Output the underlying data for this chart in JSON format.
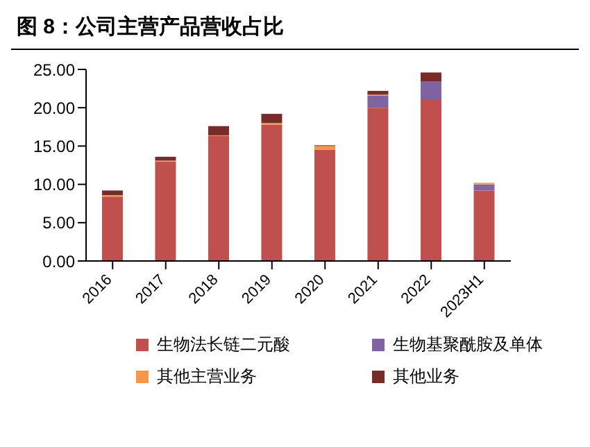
{
  "chart_data": {
    "type": "bar",
    "title": "图 8：公司主营产品营收占比",
    "stacked": true,
    "categories": [
      "2016",
      "2017",
      "2018",
      "2019",
      "2020",
      "2021",
      "2022",
      "2023H1"
    ],
    "series": [
      {
        "name": "生物法长链二元酸",
        "color": "#c0504d",
        "values": [
          8.4,
          13.0,
          16.3,
          17.8,
          14.5,
          20.0,
          21.1,
          9.2
        ]
      },
      {
        "name": "生物基聚酰胺及单体",
        "color": "#8064a2",
        "values": [
          0,
          0,
          0,
          0,
          0,
          1.6,
          2.3,
          0.8
        ]
      },
      {
        "name": "其他主营业务",
        "color": "#f79646",
        "values": [
          0.2,
          0.1,
          0.1,
          0.2,
          0.5,
          0.1,
          0,
          0.2
        ]
      },
      {
        "name": "其他业务",
        "color": "#772c2a",
        "values": [
          0.6,
          0.5,
          1.2,
          1.2,
          0.1,
          0.5,
          1.2,
          0
        ]
      }
    ],
    "ylim": [
      0,
      25
    ],
    "yticks": [
      {
        "value": 0,
        "label": "0.00"
      },
      {
        "value": 5,
        "label": "5.00"
      },
      {
        "value": 10,
        "label": "10.00"
      },
      {
        "value": 15,
        "label": "15.00"
      },
      {
        "value": 20,
        "label": "20.00"
      },
      {
        "value": 25,
        "label": "25.00"
      }
    ],
    "grid": false,
    "legend": "bottom"
  }
}
